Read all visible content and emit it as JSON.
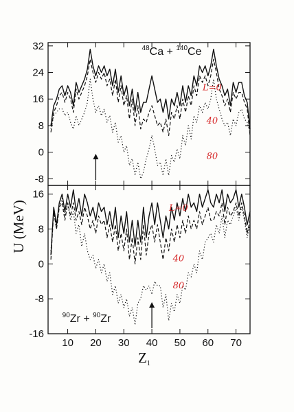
{
  "ylabel": "U (MeV)",
  "xlabel": "Z",
  "xlabel_sub": "1",
  "x_ticks": [
    10,
    20,
    30,
    40,
    50,
    60,
    70
  ],
  "chart_data": [
    {
      "type": "line",
      "system": {
        "a1": "48",
        "e1": "Ca",
        "a2": "140",
        "e2": "Ce",
        "joiner": " + "
      },
      "xlim": [
        3,
        75
      ],
      "ylim": [
        -10,
        33
      ],
      "y_ticks": [
        -8,
        0,
        8,
        16,
        24,
        32
      ],
      "arrow_x": 20,
      "annotations": [
        {
          "text": "L=0",
          "x": 61.5,
          "y": 18.6
        },
        {
          "text": "40",
          "x": 61.5,
          "y": 8.6
        },
        {
          "text": "80",
          "x": 61.5,
          "y": -2.0
        }
      ],
      "series": [
        {
          "style": "solid",
          "x": [
            4,
            5,
            6,
            7,
            8,
            9,
            10,
            11,
            12,
            13,
            14,
            15,
            16,
            17,
            18,
            19,
            20,
            21,
            22,
            23,
            24,
            25,
            26,
            27,
            28,
            29,
            30,
            31,
            32,
            33,
            34,
            35,
            36,
            37,
            38,
            39,
            40,
            41,
            42,
            43,
            44,
            45,
            46,
            47,
            48,
            49,
            50,
            51,
            52,
            53,
            54,
            55,
            56,
            57,
            58,
            59,
            60,
            61,
            62,
            63,
            64,
            65,
            66,
            67,
            68,
            69,
            70,
            71,
            72,
            73,
            74,
            75
          ],
          "y": [
            8,
            14,
            16,
            19,
            20,
            17,
            20,
            18,
            14,
            21,
            18,
            20,
            22,
            25,
            31,
            26,
            23,
            26,
            24,
            26,
            23,
            25,
            20,
            25,
            18,
            23,
            17,
            20,
            14,
            19,
            12,
            18,
            12,
            15,
            15,
            19,
            23,
            19,
            15,
            16,
            12,
            16,
            10,
            16,
            14,
            18,
            14,
            20,
            15,
            20,
            17,
            23,
            20,
            26,
            24,
            26,
            23,
            26,
            31,
            26,
            22,
            20,
            17,
            19,
            14,
            21,
            18,
            21,
            21,
            17,
            15,
            7
          ]
        },
        {
          "style": "dashed",
          "x": [
            4,
            5,
            6,
            7,
            8,
            9,
            10,
            11,
            12,
            13,
            14,
            15,
            16,
            17,
            18,
            19,
            20,
            21,
            22,
            23,
            24,
            25,
            26,
            27,
            28,
            29,
            30,
            31,
            32,
            33,
            34,
            35,
            36,
            37,
            38,
            39,
            40,
            41,
            42,
            43,
            44,
            45,
            46,
            47,
            48,
            49,
            50,
            51,
            52,
            53,
            54,
            55,
            56,
            57,
            58,
            59,
            60,
            61,
            62,
            63,
            64,
            65,
            66,
            67,
            68,
            69,
            70,
            71,
            72,
            73,
            74,
            75
          ],
          "y": [
            6,
            12,
            14,
            17,
            18,
            15,
            18,
            16,
            12,
            19,
            16,
            18,
            20,
            23,
            28,
            24,
            21,
            24,
            22,
            24,
            20,
            22,
            17,
            22,
            15,
            20,
            14,
            17,
            10,
            16,
            8,
            14,
            7,
            10,
            9,
            12,
            14,
            11,
            8,
            9,
            6,
            10,
            5,
            12,
            10,
            14,
            10,
            16,
            12,
            17,
            14,
            20,
            17,
            23,
            21,
            23,
            20,
            23,
            28,
            24,
            19,
            17,
            14,
            16,
            12,
            18,
            16,
            18,
            18,
            15,
            13,
            5
          ]
        },
        {
          "style": "dotted",
          "x": [
            4,
            5,
            6,
            7,
            8,
            9,
            10,
            11,
            12,
            13,
            14,
            15,
            16,
            17,
            18,
            19,
            20,
            21,
            22,
            23,
            24,
            25,
            26,
            27,
            28,
            29,
            30,
            31,
            32,
            33,
            34,
            35,
            36,
            37,
            38,
            39,
            40,
            41,
            42,
            43,
            44,
            45,
            46,
            47,
            48,
            49,
            50,
            51,
            52,
            53,
            54,
            55,
            56,
            57,
            58,
            59,
            60,
            61,
            62,
            63,
            64,
            65,
            66,
            67,
            68,
            69,
            70,
            71,
            72,
            73,
            74,
            75
          ],
          "y": [
            7,
            11,
            12,
            13,
            13,
            11,
            12,
            9,
            7,
            11,
            8,
            10,
            12,
            15,
            22,
            16,
            12,
            14,
            11,
            13,
            9,
            11,
            6,
            9,
            3,
            5,
            0,
            2,
            -4,
            -2,
            -7,
            -3,
            -8,
            -6,
            -2,
            1,
            5,
            1,
            -4,
            -3,
            -7,
            -2,
            -7,
            -1,
            -3,
            1,
            -2,
            5,
            2,
            8,
            4,
            11,
            9,
            14,
            12,
            15,
            13,
            16,
            22,
            16,
            13,
            10,
            8,
            9,
            5,
            10,
            8,
            12,
            13,
            10,
            9,
            6
          ]
        }
      ]
    },
    {
      "type": "line",
      "system": {
        "a1": "90",
        "e1": "Zr",
        "a2": "90",
        "e2": "Zr",
        "joiner": " + "
      },
      "xlim": [
        3,
        75
      ],
      "ylim": [
        -16,
        18
      ],
      "y_ticks": [
        -16,
        -8,
        0,
        8,
        16
      ],
      "arrow_x": 40,
      "annotations": [
        {
          "text": "L=0",
          "x": 49.5,
          "y": 12.2
        },
        {
          "text": "40",
          "x": 49.5,
          "y": 0.6
        },
        {
          "text": "80",
          "x": 49.5,
          "y": -5.6
        }
      ],
      "series": [
        {
          "style": "solid",
          "x": [
            4,
            5,
            6,
            7,
            8,
            9,
            10,
            11,
            12,
            13,
            14,
            15,
            16,
            17,
            18,
            19,
            20,
            21,
            22,
            23,
            24,
            25,
            26,
            27,
            28,
            29,
            30,
            31,
            32,
            33,
            34,
            35,
            36,
            37,
            38,
            39,
            40,
            41,
            42,
            43,
            44,
            45,
            46,
            47,
            48,
            49,
            50,
            51,
            52,
            53,
            54,
            55,
            56,
            57,
            58,
            59,
            60,
            61,
            62,
            63,
            64,
            65,
            66,
            67,
            68,
            69,
            70,
            71,
            72,
            73,
            74,
            75
          ],
          "y": [
            2,
            13,
            9,
            14,
            16,
            12,
            16,
            13,
            17,
            12,
            15,
            11,
            16,
            14,
            11,
            13,
            10,
            14,
            12,
            13,
            9,
            12,
            8,
            13,
            6,
            11,
            7,
            12,
            5,
            10,
            4,
            10,
            5,
            13,
            6,
            11,
            14,
            9,
            14,
            10,
            6,
            11,
            8,
            13,
            10,
            14,
            11,
            15,
            12,
            16,
            13,
            14,
            12,
            16,
            13,
            15,
            17,
            14,
            13,
            16,
            14,
            17,
            12,
            16,
            14,
            15,
            17,
            13,
            16,
            13,
            9,
            12
          ]
        },
        {
          "style": "dashed",
          "x": [
            4,
            5,
            6,
            7,
            8,
            9,
            10,
            11,
            12,
            13,
            14,
            15,
            16,
            17,
            18,
            19,
            20,
            21,
            22,
            23,
            24,
            25,
            26,
            27,
            28,
            29,
            30,
            31,
            32,
            33,
            34,
            35,
            36,
            37,
            38,
            39,
            40,
            41,
            42,
            43,
            44,
            45,
            46,
            47,
            48,
            49,
            50,
            51,
            52,
            53,
            54,
            55,
            56,
            57,
            58,
            59,
            60,
            61,
            62,
            63,
            64,
            65,
            66,
            67,
            68,
            69,
            70,
            71,
            72,
            73,
            74,
            75
          ],
          "y": [
            1,
            12,
            8,
            13,
            14,
            10,
            14,
            11,
            14,
            10,
            12,
            9,
            13,
            11,
            8,
            10,
            7,
            11,
            9,
            10,
            6,
            9,
            5,
            9,
            3,
            7,
            3,
            8,
            1,
            6,
            0,
            6,
            1,
            9,
            2,
            7,
            9,
            5,
            9,
            5,
            1,
            6,
            3,
            8,
            5,
            9,
            6,
            10,
            7,
            11,
            8,
            10,
            8,
            12,
            9,
            11,
            13,
            10,
            10,
            12,
            11,
            14,
            9,
            13,
            11,
            12,
            14,
            11,
            14,
            11,
            7,
            10
          ]
        },
        {
          "style": "dotted",
          "x": [
            4,
            5,
            6,
            7,
            8,
            9,
            10,
            11,
            12,
            13,
            14,
            15,
            16,
            17,
            18,
            19,
            20,
            21,
            22,
            23,
            24,
            25,
            26,
            27,
            28,
            29,
            30,
            31,
            32,
            33,
            34,
            35,
            36,
            37,
            38,
            39,
            40,
            41,
            42,
            43,
            44,
            45,
            46,
            47,
            48,
            49,
            50,
            51,
            52,
            53,
            54,
            55,
            56,
            57,
            58,
            59,
            60,
            61,
            62,
            63,
            64,
            65,
            66,
            67,
            68,
            69,
            70,
            71,
            72,
            73,
            74,
            75
          ],
          "y": [
            3,
            12,
            8,
            13,
            15,
            11,
            14,
            10,
            12,
            7,
            9,
            4,
            7,
            3,
            1,
            2,
            -1,
            1,
            -2,
            0,
            -4,
            -2,
            -7,
            -5,
            -9,
            -7,
            -10,
            -8,
            -12,
            -10,
            -14,
            -9,
            -8,
            -5,
            -6,
            -5,
            -7,
            -4,
            -5,
            -5,
            -10,
            -7,
            -13,
            -9,
            -11,
            -7,
            -9,
            -5,
            -6,
            -2,
            -3,
            0,
            -2,
            3,
            1,
            5,
            6,
            7,
            5,
            9,
            7,
            11,
            6,
            10,
            9,
            11,
            13,
            10,
            13,
            10,
            6,
            9
          ]
        }
      ]
    }
  ]
}
